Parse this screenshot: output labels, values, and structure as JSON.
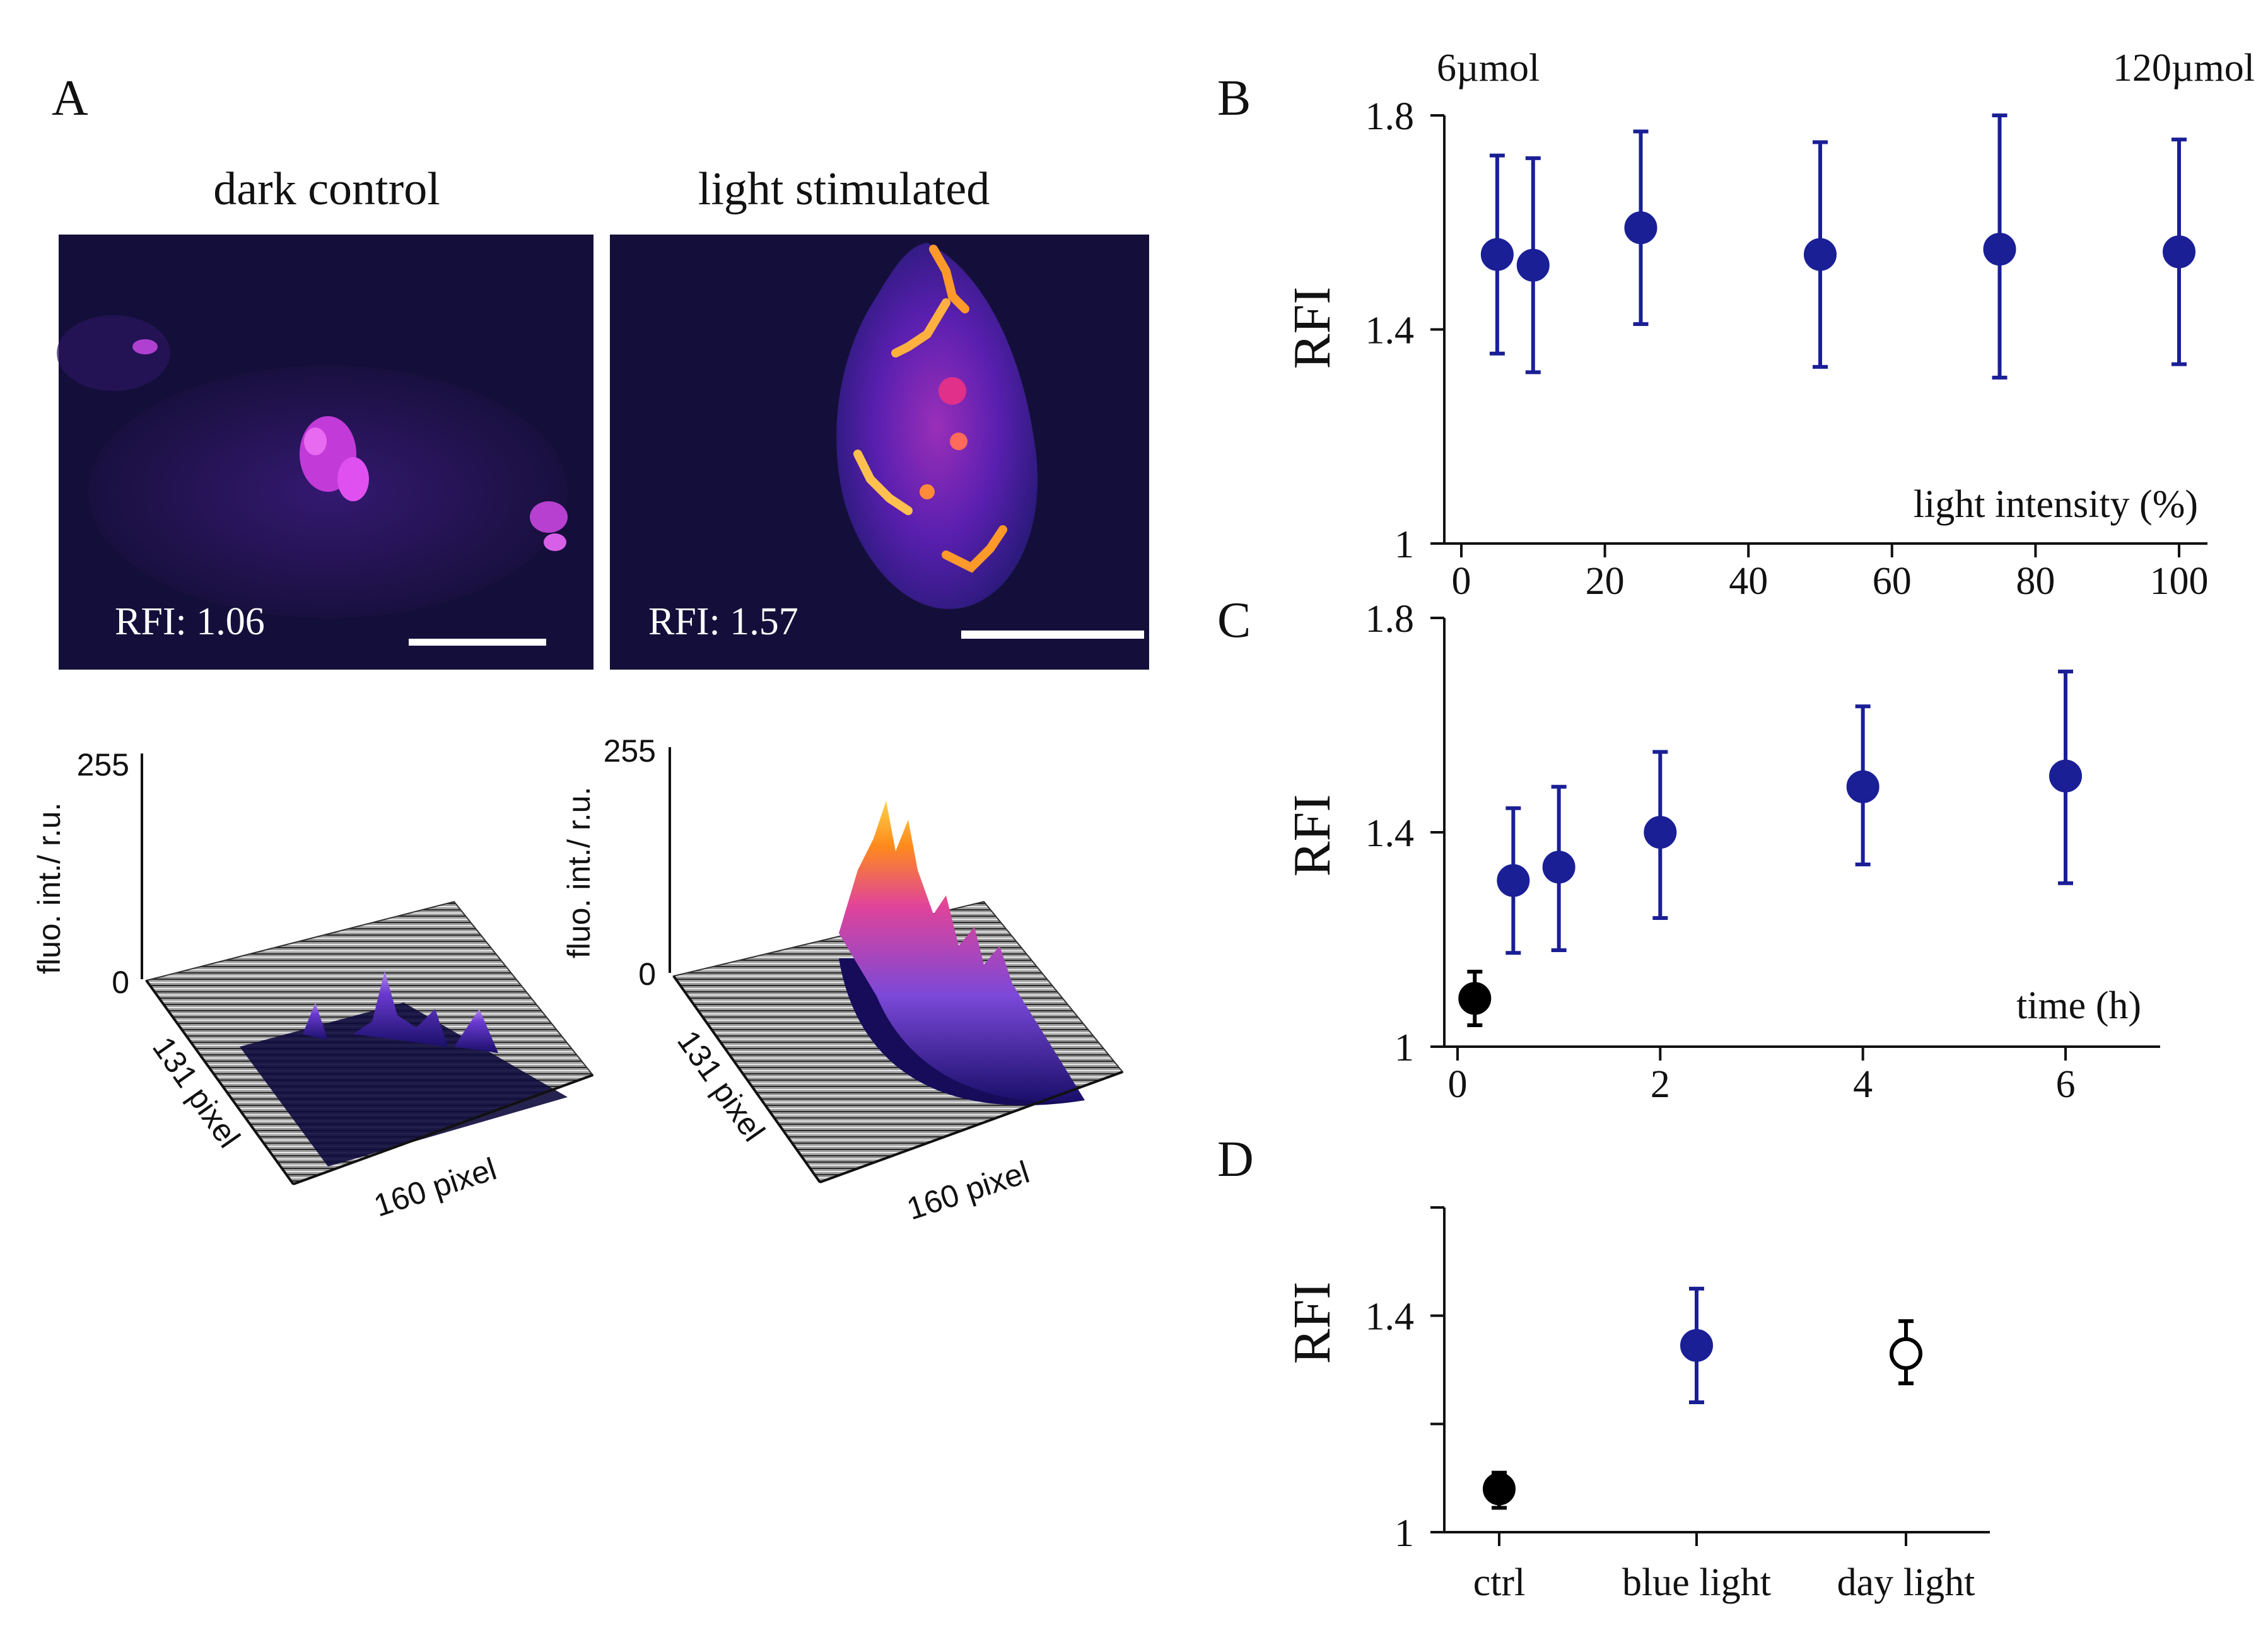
{
  "colors": {
    "blue": "#1a1f96",
    "black": "#000000",
    "image_bg": "#140f3a",
    "ridge_dark": "#0f0a50",
    "ridge_mid": "#7a48d8",
    "ridge_hot": "#ff8a1c",
    "ridge_peak": "#ffd34a"
  },
  "panel_a": {
    "letter": "A",
    "left": {
      "title": "dark control",
      "rfi_text": "RFI: 1.06",
      "surface": {
        "z_max": "255",
        "z_min": "0",
        "z_label": "fluo. int./ r.u.",
        "x_label": "160 pixel",
        "y_label": "131 pixel"
      }
    },
    "right": {
      "title": "light stimulated",
      "rfi_text": "RFI: 1.57",
      "surface": {
        "z_max": "255",
        "z_min": "0",
        "z_label": "fluo. int./ r.u.",
        "x_label": "160 pixel",
        "y_label": "131 pixel"
      }
    }
  },
  "chart_data": [
    {
      "panel": "B",
      "type": "scatter",
      "title": "",
      "xlabel": "light intensity (%)",
      "ylabel": "RFI",
      "xlim": [
        0,
        102
      ],
      "ylim": [
        1,
        1.8
      ],
      "xticks": [
        0,
        20,
        40,
        60,
        80,
        100
      ],
      "yticks": [
        1,
        1.4,
        1.8
      ],
      "ytick_labels": [
        "1",
        "1.4",
        "1.8"
      ],
      "annotations": [
        "6µmol",
        "120µmol"
      ],
      "series": [
        {
          "marker": "filled-blue",
          "points": [
            {
              "x": 5,
              "y": 1.54,
              "lo": 1.355,
              "hi": 1.725
            },
            {
              "x": 10,
              "y": 1.52,
              "lo": 1.32,
              "hi": 1.72
            },
            {
              "x": 25,
              "y": 1.59,
              "lo": 1.41,
              "hi": 1.77
            },
            {
              "x": 50,
              "y": 1.54,
              "lo": 1.33,
              "hi": 1.75
            },
            {
              "x": 75,
              "y": 1.55,
              "lo": 1.31,
              "hi": 1.8
            },
            {
              "x": 100,
              "y": 1.545,
              "lo": 1.335,
              "hi": 1.755
            }
          ]
        }
      ]
    },
    {
      "panel": "C",
      "type": "scatter",
      "title": "",
      "xlabel": "time (h)",
      "ylabel": "RFI",
      "xlim": [
        0,
        6.9
      ],
      "ylim": [
        1,
        1.8
      ],
      "xticks": [
        0,
        2,
        4,
        6
      ],
      "yticks": [
        1,
        1.4,
        1.8
      ],
      "ytick_labels": [
        "1",
        "1.4",
        "1.8"
      ],
      "series": [
        {
          "marker": "filled-black",
          "points": [
            {
              "x": 0.17,
              "y": 1.09,
              "lo": 1.04,
              "hi": 1.14
            }
          ]
        },
        {
          "marker": "filled-blue",
          "points": [
            {
              "x": 0.55,
              "y": 1.31,
              "lo": 1.175,
              "hi": 1.445
            },
            {
              "x": 1,
              "y": 1.335,
              "lo": 1.18,
              "hi": 1.485
            },
            {
              "x": 2,
              "y": 1.4,
              "lo": 1.24,
              "hi": 1.55
            },
            {
              "x": 4,
              "y": 1.485,
              "lo": 1.34,
              "hi": 1.635
            },
            {
              "x": 6,
              "y": 1.505,
              "lo": 1.305,
              "hi": 1.7
            }
          ]
        }
      ]
    },
    {
      "panel": "D",
      "type": "scatter",
      "title": "",
      "xlabel": "",
      "ylabel": "RFI",
      "ylim": [
        1,
        1.6
      ],
      "yticks": [
        1,
        1.2,
        1.4,
        1.6
      ],
      "ytick_labels": [
        "1",
        "",
        "1.4",
        ""
      ],
      "categories": [
        "ctrl",
        "blue light",
        "day light"
      ],
      "series": [
        {
          "points": [
            {
              "category": "ctrl",
              "marker": "filled-black",
              "y": 1.08,
              "lo": 1.045,
              "hi": 1.11
            },
            {
              "category": "blue light",
              "marker": "filled-blue",
              "y": 1.345,
              "lo": 1.24,
              "hi": 1.45
            },
            {
              "category": "day light",
              "marker": "open-black",
              "y": 1.33,
              "lo": 1.275,
              "hi": 1.39
            }
          ]
        }
      ]
    }
  ]
}
